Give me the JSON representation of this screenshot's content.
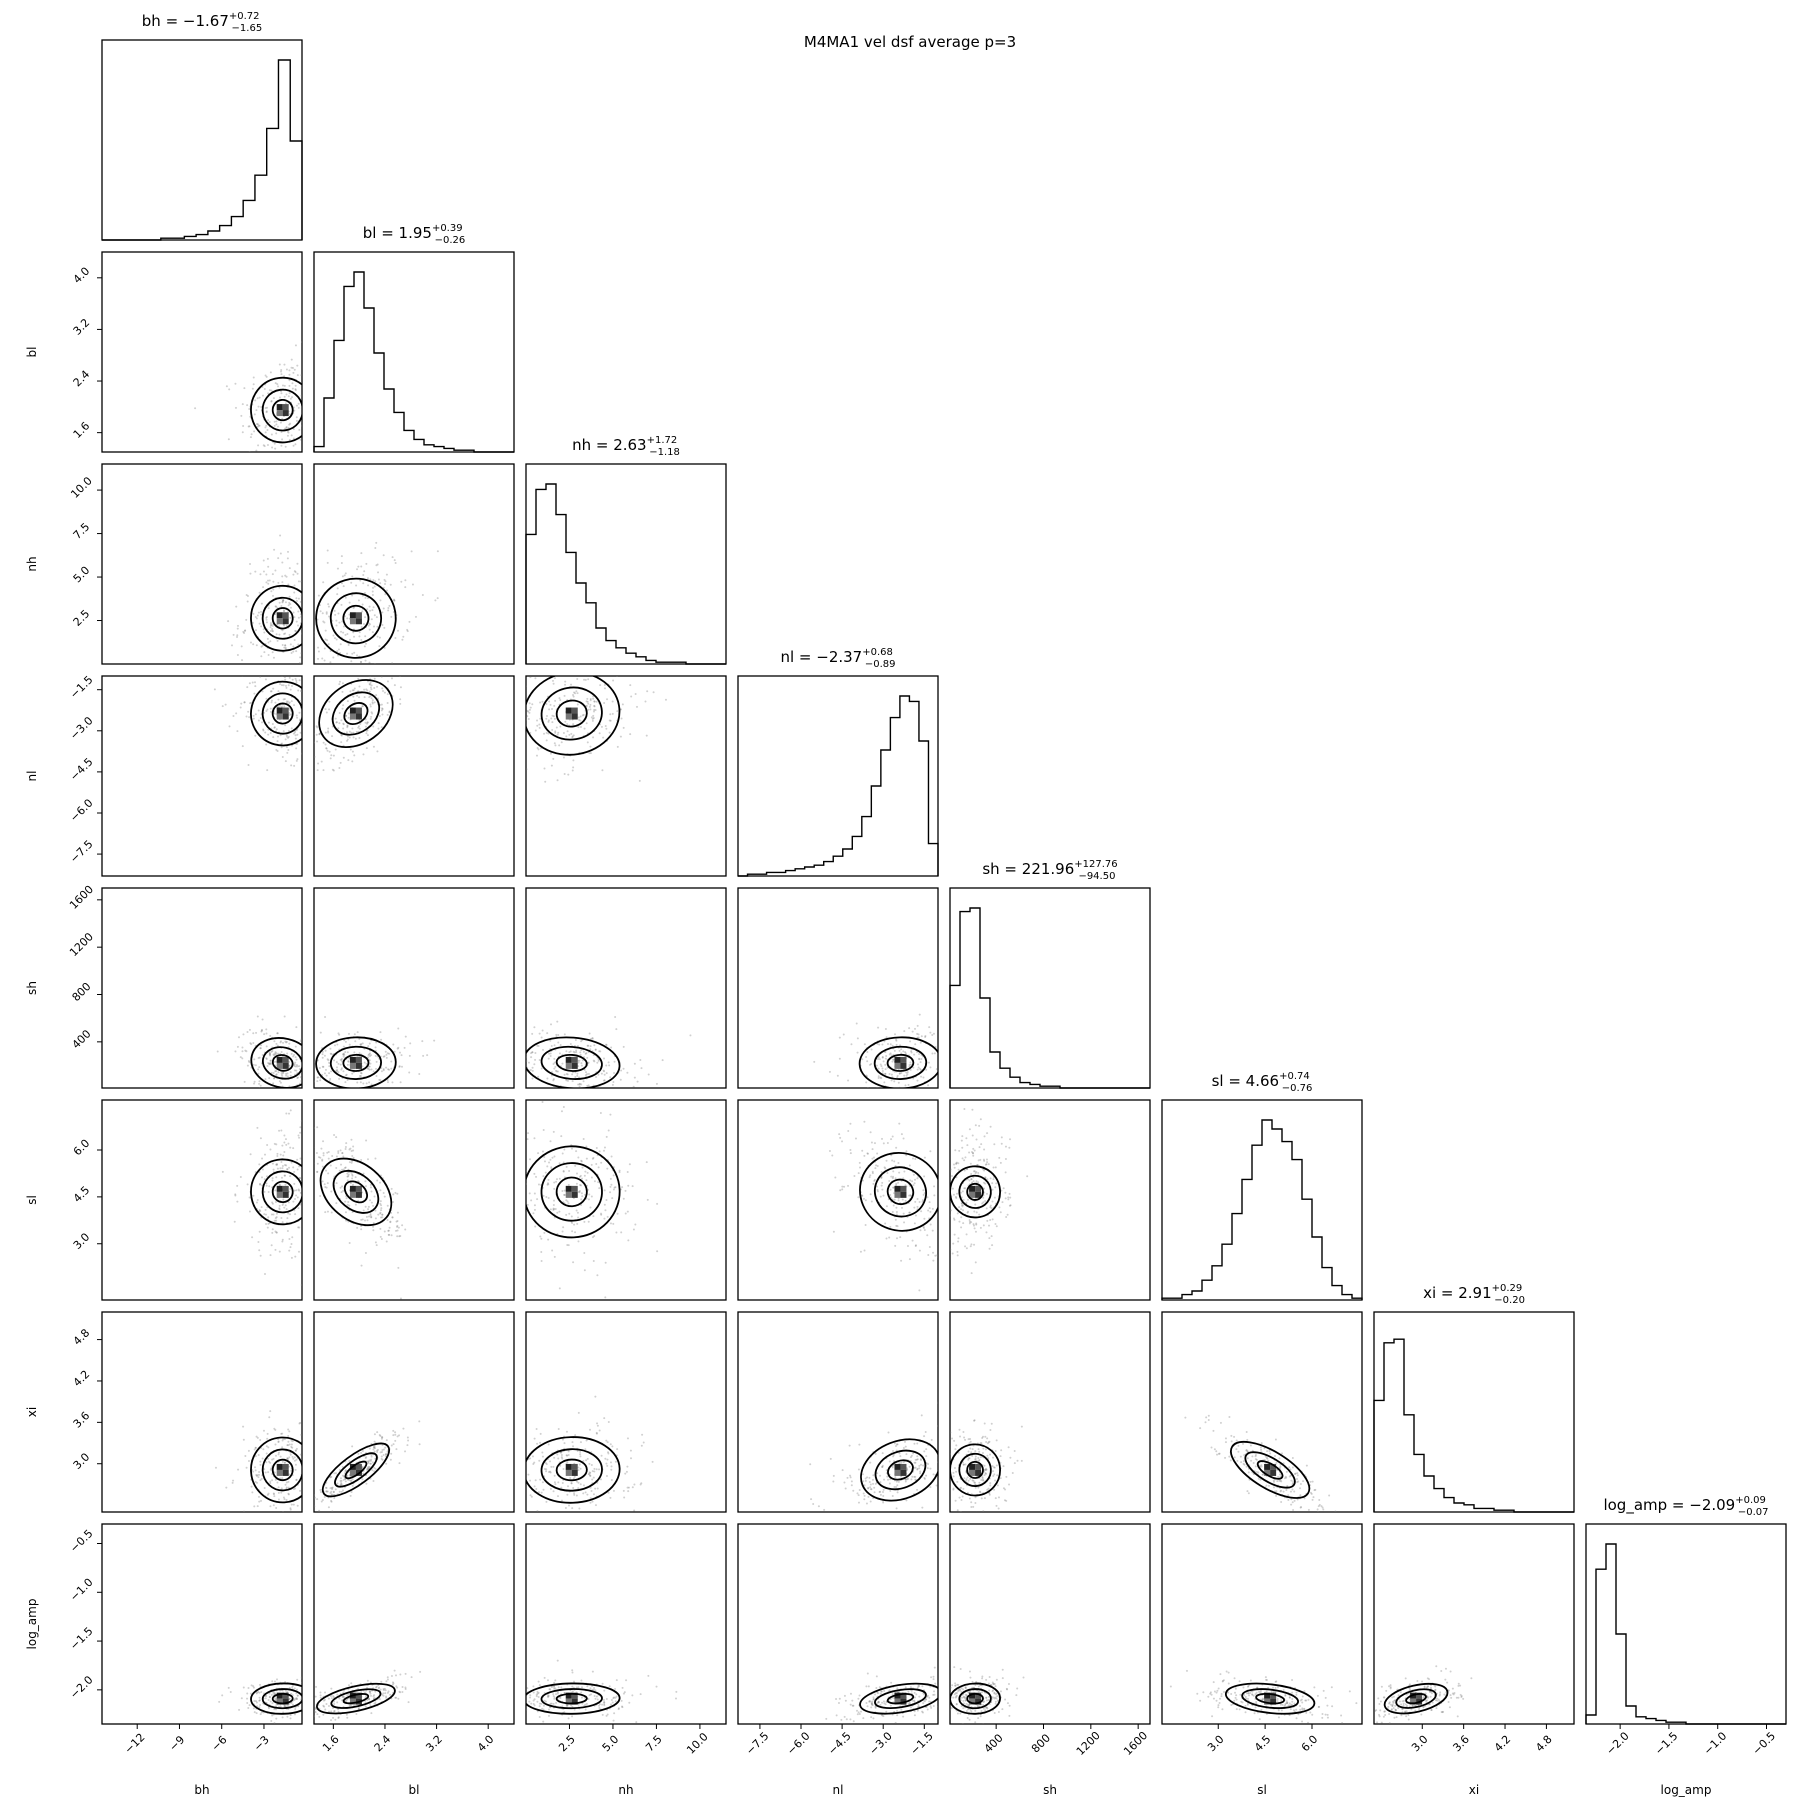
{
  "chart_data": {
    "type": "corner",
    "title": "M4MA1 vel dsf average p=3",
    "parameters": [
      {
        "name": "bh",
        "axis_label": "bh",
        "title_label": "bh",
        "median_text": "−1.67",
        "err_plus": "+0.72",
        "err_minus": "−1.65",
        "median": -1.67,
        "plus": 0.72,
        "minus": 1.65,
        "range": [
          -14.5,
          -0.3
        ],
        "ticks": [
          -12,
          -9,
          -6,
          -3
        ],
        "tick_labels": [
          "−12",
          "−9",
          "−6",
          "−3"
        ]
      },
      {
        "name": "bl",
        "axis_label": "bl",
        "title_label": "bl",
        "median_text": "1.95",
        "err_plus": "+0.39",
        "err_minus": "−0.26",
        "median": 1.95,
        "plus": 0.39,
        "minus": 0.26,
        "range": [
          1.3,
          4.4
        ],
        "ticks": [
          1.6,
          2.4,
          3.2,
          4.0
        ],
        "tick_labels": [
          "1.6",
          "2.4",
          "3.2",
          "4.0"
        ]
      },
      {
        "name": "nh",
        "axis_label": "nh",
        "title_label": "nh",
        "median_text": "2.63",
        "err_plus": "+1.72",
        "err_minus": "−1.18",
        "median": 2.63,
        "plus": 1.72,
        "minus": 1.18,
        "range": [
          0,
          11.5
        ],
        "ticks": [
          2.5,
          5.0,
          7.5,
          10.0
        ],
        "tick_labels": [
          "2.5",
          "5.0",
          "7.5",
          "10.0"
        ]
      },
      {
        "name": "nl",
        "axis_label": "nl",
        "title_label": "nl",
        "median_text": "−2.37",
        "err_plus": "+0.68",
        "err_minus": "−0.89",
        "median": -2.37,
        "plus": 0.68,
        "minus": 0.89,
        "range": [
          -8.3,
          -1.0
        ],
        "ticks": [
          -7.5,
          -6.0,
          -4.5,
          -3.0,
          -1.5
        ],
        "tick_labels": [
          "−7.5",
          "−6.0",
          "−4.5",
          "−3.0",
          "−1.5"
        ]
      },
      {
        "name": "sh",
        "axis_label": "sh",
        "title_label": "sh",
        "median_text": "221.96",
        "err_plus": "+127.76",
        "err_minus": "−94.50",
        "median": 221.96,
        "plus": 127.76,
        "minus": 94.5,
        "range": [
          10,
          1700
        ],
        "ticks": [
          400,
          800,
          1200,
          1600
        ],
        "tick_labels": [
          "400",
          "800",
          "1200",
          "1600"
        ]
      },
      {
        "name": "sl",
        "axis_label": "sl",
        "title_label": "sl",
        "median_text": "4.66",
        "err_plus": "+0.74",
        "err_minus": "−0.76",
        "median": 4.66,
        "plus": 0.74,
        "minus": 0.76,
        "range": [
          1.2,
          7.6
        ],
        "ticks": [
          3.0,
          4.5,
          6.0
        ],
        "tick_labels": [
          "3.0",
          "4.5",
          "6.0"
        ]
      },
      {
        "name": "xi",
        "axis_label": "xi",
        "title_label": "xi",
        "median_text": "2.91",
        "err_plus": "+0.29",
        "err_minus": "−0.20",
        "median": 2.91,
        "plus": 0.29,
        "minus": 0.2,
        "range": [
          2.3,
          5.2
        ],
        "ticks": [
          3.0,
          3.6,
          4.2,
          4.8
        ],
        "tick_labels": [
          "3.0",
          "3.6",
          "4.2",
          "4.8"
        ]
      },
      {
        "name": "log_amp",
        "axis_label": "log_amp",
        "title_label": "log_amp",
        "median_text": "−2.09",
        "err_plus": "+0.09",
        "err_minus": "−0.07",
        "median": -2.09,
        "plus": 0.09,
        "minus": 0.07,
        "range": [
          -2.35,
          -0.3
        ],
        "ticks": [
          -2.0,
          -1.5,
          -1.0,
          -0.5
        ],
        "tick_labels": [
          "−2.0",
          "−1.5",
          "−1.0",
          "−0.5"
        ]
      }
    ],
    "histograms": [
      {
        "param": "bh",
        "counts": [
          0,
          0,
          0,
          0,
          0,
          1,
          1,
          2,
          3,
          5,
          8,
          13,
          22,
          36,
          62,
          100,
          55
        ]
      },
      {
        "param": "bl",
        "counts": [
          3,
          30,
          62,
          92,
          100,
          80,
          55,
          35,
          22,
          12,
          7,
          4,
          3,
          2,
          1,
          1,
          0,
          0,
          0,
          0
        ]
      },
      {
        "param": "nh",
        "counts": [
          72,
          97,
          100,
          83,
          62,
          45,
          34,
          20,
          13,
          9,
          6,
          4,
          2,
          1,
          1,
          1,
          0,
          0,
          0,
          0
        ]
      },
      {
        "param": "nl",
        "counts": [
          0,
          1,
          1,
          2,
          2,
          3,
          4,
          5,
          6,
          8,
          11,
          15,
          22,
          33,
          50,
          70,
          88,
          100,
          97,
          75,
          18
        ]
      },
      {
        "param": "sh",
        "counts": [
          57,
          98,
          100,
          50,
          20,
          11,
          6,
          3,
          2,
          1,
          1,
          0,
          0,
          0,
          0,
          0,
          0,
          0,
          0,
          0
        ]
      },
      {
        "param": "sl",
        "counts": [
          1,
          1,
          3,
          5,
          11,
          19,
          31,
          48,
          67,
          86,
          100,
          95,
          88,
          78,
          56,
          35,
          18,
          8,
          3,
          1
        ]
      },
      {
        "param": "xi",
        "counts": [
          62,
          94,
          96,
          54,
          32,
          20,
          13,
          8,
          5,
          4,
          2,
          2,
          1,
          1,
          0,
          0,
          0,
          0,
          0,
          0
        ]
      },
      {
        "param": "log_amp",
        "counts": [
          5,
          86,
          100,
          50,
          10,
          4,
          3,
          2,
          1,
          1,
          0,
          0,
          0,
          0,
          0,
          0,
          0,
          0,
          0,
          0
        ]
      }
    ]
  }
}
